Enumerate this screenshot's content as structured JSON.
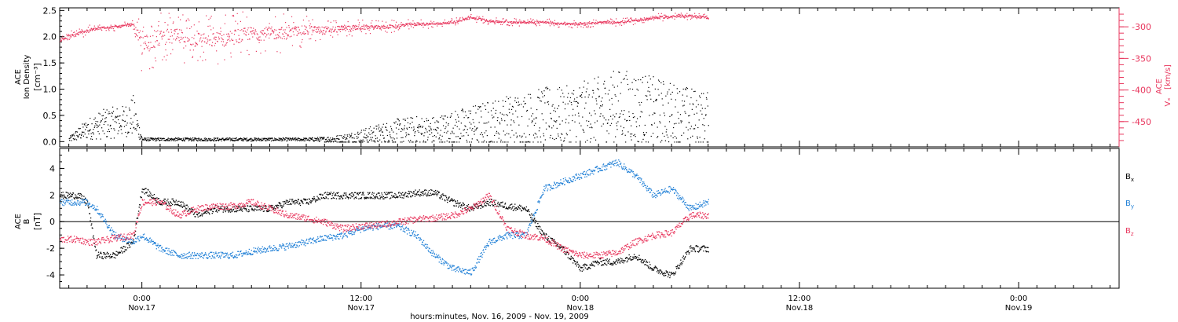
{
  "colors": {
    "black": "#000000",
    "red": "#e8365d",
    "blue": "#1f7fd6",
    "frame": "#000000"
  },
  "chart_data": [
    {
      "type": "scatter",
      "panel": "top",
      "ylabel_lines": [
        "ACE",
        "Ion Density"
      ],
      "ylabel_unit": "[cm⁻³]",
      "ylim": [
        -0.1,
        2.55
      ],
      "yticks": [
        0.0,
        0.5,
        1.0,
        1.5,
        2.0,
        2.5
      ],
      "ytick_labels": [
        "0.0",
        "0.5",
        "1.0",
        "1.5",
        "2.0",
        "2.5"
      ],
      "right_axis": {
        "label_lines": [
          "ACE",
          "Vₓ"
        ],
        "unit": "[km/s]",
        "ylim": [
          -490,
          -270
        ],
        "yticks": [
          -300,
          -350,
          -400,
          -450
        ],
        "ytick_labels": [
          "-300",
          "-350",
          "-400",
          "-450"
        ]
      },
      "x_range_hours": [
        -4.5,
        31.5
      ],
      "series": [
        {
          "label": "Ion Density",
          "color": "#000000",
          "x_hours": [
            -4,
            -3,
            -2,
            -1,
            -0.5,
            0,
            1,
            2,
            3,
            4,
            5,
            6,
            7,
            8,
            9,
            10,
            11,
            12,
            13,
            14,
            15,
            16,
            17,
            18,
            19,
            20,
            21,
            22,
            23,
            24,
            25,
            26,
            27,
            28,
            29,
            30,
            31
          ],
          "y": [
            0.05,
            0.25,
            0.35,
            0.4,
            0.5,
            0.05,
            0.05,
            0.05,
            0.05,
            0.05,
            0.05,
            0.05,
            0.05,
            0.05,
            0.05,
            0.05,
            0.05,
            0.1,
            0.15,
            0.2,
            0.2,
            0.2,
            0.25,
            0.3,
            0.35,
            0.4,
            0.45,
            0.5,
            0.5,
            0.55,
            0.6,
            0.7,
            0.65,
            0.6,
            0.55,
            0.5,
            0.45
          ],
          "spread": [
            0.05,
            0.2,
            0.3,
            0.3,
            0.4,
            0.03,
            0.03,
            0.03,
            0.03,
            0.03,
            0.03,
            0.03,
            0.03,
            0.03,
            0.03,
            0.05,
            0.1,
            0.15,
            0.2,
            0.25,
            0.3,
            0.3,
            0.35,
            0.4,
            0.45,
            0.5,
            0.5,
            0.55,
            0.55,
            0.6,
            0.65,
            0.7,
            0.7,
            0.65,
            0.6,
            0.55,
            0.5
          ]
        },
        {
          "label": "Vx",
          "axis": "right",
          "color": "#e8365d",
          "x_hours": [
            -4.5,
            -3,
            -2,
            -1.5,
            -1,
            -0.5,
            0,
            1,
            2,
            3,
            4,
            5,
            6,
            7,
            8,
            9,
            10,
            11,
            12,
            13,
            14,
            15,
            16,
            17,
            18,
            19,
            20,
            21,
            22,
            23,
            24,
            25,
            26,
            27,
            28,
            29,
            30,
            31
          ],
          "y": [
            -320,
            -305,
            -300,
            -300,
            -298,
            -295,
            -330,
            -315,
            -315,
            -320,
            -320,
            -315,
            -310,
            -310,
            -308,
            -305,
            -305,
            -302,
            -300,
            -300,
            -298,
            -295,
            -295,
            -292,
            -285,
            -290,
            -292,
            -292,
            -292,
            -295,
            -295,
            -293,
            -292,
            -290,
            -285,
            -283,
            -282,
            -285
          ],
          "spread": [
            10,
            8,
            6,
            6,
            6,
            6,
            50,
            40,
            40,
            40,
            40,
            40,
            35,
            35,
            30,
            25,
            20,
            15,
            12,
            10,
            10,
            8,
            6,
            6,
            6,
            6,
            6,
            6,
            6,
            6,
            6,
            6,
            6,
            6,
            6,
            6,
            6,
            6
          ]
        }
      ]
    },
    {
      "type": "scatter",
      "panel": "bottom",
      "ylabel_lines": [
        "ACE",
        "B"
      ],
      "ylabel_unit": "[nT]",
      "ylim": [
        -5.0,
        5.5
      ],
      "yticks": [
        4,
        2,
        0,
        -2,
        -4
      ],
      "ytick_labels": [
        "4",
        "2",
        "0",
        "-2",
        "-4"
      ],
      "zero_line": true,
      "x_range_hours": [
        -4.5,
        31.5
      ],
      "series": [
        {
          "label": "Bx",
          "color": "#000000",
          "x_hours": [
            -4.5,
            -3.5,
            -3,
            -2.5,
            -1.5,
            -0.5,
            0,
            0.5,
            1,
            2,
            3,
            4,
            5,
            6,
            7,
            8,
            9,
            10,
            11,
            12,
            13,
            14,
            15,
            16,
            17,
            18,
            19,
            20,
            21,
            22,
            23,
            24,
            25,
            26,
            27,
            28,
            29,
            30,
            31
          ],
          "y": [
            2.0,
            2.0,
            1.5,
            -2.5,
            -2.5,
            -1.5,
            2.5,
            2.0,
            1.5,
            1.5,
            0.5,
            1.0,
            1.0,
            1.0,
            1.0,
            1.5,
            1.5,
            2.0,
            2.0,
            2.0,
            2.0,
            2.0,
            2.2,
            2.2,
            1.5,
            1.0,
            1.5,
            1.2,
            1.0,
            -1.0,
            -2.0,
            -3.5,
            -3.0,
            -3.0,
            -2.5,
            -3.5,
            -4.0,
            -2.0,
            -2.0
          ]
        },
        {
          "label": "By",
          "color": "#1f7fd6",
          "x_hours": [
            -4.5,
            -3.5,
            -3,
            -2.5,
            -1.5,
            -0.5,
            0,
            1,
            2,
            3,
            4,
            5,
            6,
            7,
            8,
            9,
            10,
            11,
            12,
            13,
            14,
            15,
            16,
            17,
            18,
            19,
            20,
            21,
            22,
            23,
            24,
            25,
            26,
            27,
            28,
            29,
            30,
            31
          ],
          "y": [
            1.5,
            1.5,
            1.5,
            1.0,
            -1.0,
            -1.5,
            -1.0,
            -2.0,
            -2.5,
            -2.5,
            -2.5,
            -2.5,
            -2.2,
            -2.0,
            -1.8,
            -1.5,
            -1.2,
            -1.0,
            -0.5,
            -0.3,
            -0.3,
            -1.0,
            -2.5,
            -3.5,
            -3.8,
            -1.5,
            -1.0,
            -1.0,
            2.5,
            3.0,
            3.5,
            4.0,
            4.5,
            3.5,
            2.0,
            2.5,
            1.0,
            1.5
          ]
        },
        {
          "label": "Bz",
          "color": "#e8365d",
          "x_hours": [
            -4.5,
            -3.5,
            -3,
            -2.5,
            -1.5,
            -0.5,
            0,
            1,
            2,
            3,
            4,
            5,
            6,
            7,
            8,
            9,
            10,
            11,
            12,
            13,
            14,
            15,
            16,
            17,
            18,
            19,
            20,
            21,
            22,
            23,
            24,
            25,
            26,
            27,
            28,
            29,
            30,
            31
          ],
          "y": [
            -1.3,
            -1.3,
            -1.5,
            -1.5,
            -1.2,
            -1.0,
            1.5,
            1.5,
            0.5,
            1.0,
            1.2,
            1.2,
            1.5,
            1.0,
            0.5,
            0.3,
            0.0,
            -0.5,
            -0.3,
            -0.2,
            0.0,
            0.2,
            0.3,
            0.5,
            1.0,
            2.0,
            -0.5,
            -1.0,
            -1.2,
            -2.0,
            -2.5,
            -2.5,
            -2.3,
            -1.5,
            -1.0,
            -0.8,
            0.5,
            0.5
          ]
        }
      ],
      "legend": [
        {
          "text": "B",
          "sub": "x",
          "color": "#000000"
        },
        {
          "text": "B",
          "sub": "y",
          "color": "#1f7fd6"
        },
        {
          "text": "B",
          "sub": "z",
          "color": "#e8365d"
        }
      ]
    }
  ],
  "x_axis": {
    "ticks": [
      {
        "hours": 0,
        "time": "0:00",
        "day": "Nov.17"
      },
      {
        "hours": 12,
        "time": "12:00",
        "day": "Nov.17"
      },
      {
        "hours": 24,
        "time": "0:00",
        "day": "Nov.18"
      },
      {
        "hours": 36,
        "time": "12:00",
        "day": "Nov.18"
      },
      {
        "hours": 48,
        "time": "0:00",
        "day": "Nov.19"
      }
    ],
    "range_hours": [
      -4.5,
      53.5
    ],
    "title": "hours:minutes, Nov. 16, 2009 - Nov. 19, 2009"
  }
}
